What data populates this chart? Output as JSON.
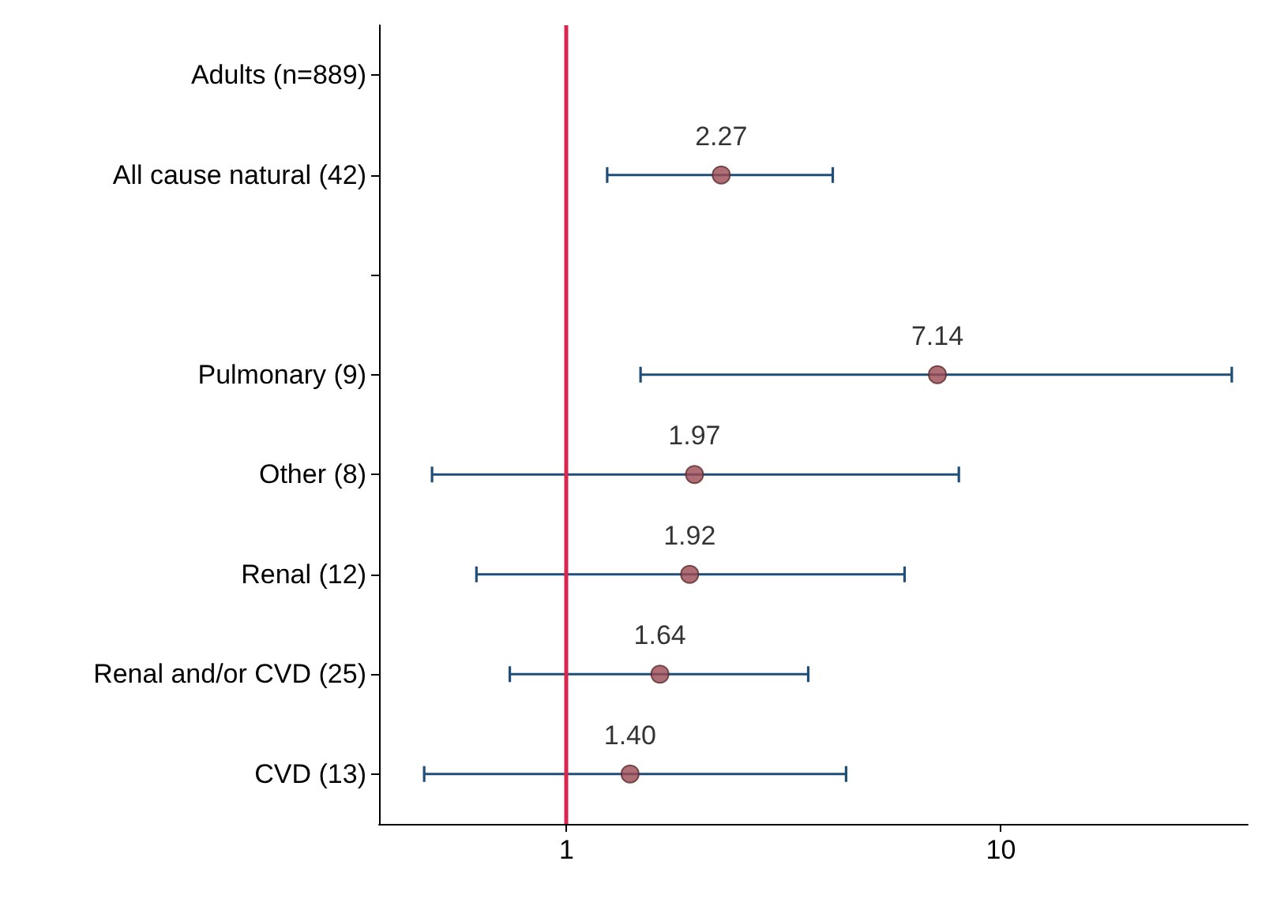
{
  "chart_data": {
    "type": "scatter",
    "orientation": "horizontal",
    "categories": [
      "Adults (n=889)",
      "All cause natural (42)",
      null,
      "Pulmonary (9)",
      "Other (8)",
      "Renal (12)",
      "Renal and/or CVD (25)",
      "CVD (13)"
    ],
    "values": [
      null,
      2.27,
      null,
      7.14,
      1.97,
      1.92,
      1.64,
      1.4
    ],
    "errors": [
      null,
      [
        1.24,
        4.1
      ],
      null,
      [
        1.48,
        34
      ],
      [
        0.49,
        8.0
      ],
      [
        0.62,
        6.0
      ],
      [
        0.74,
        3.6
      ],
      [
        0.47,
        4.4
      ]
    ],
    "value_labels": [
      null,
      "2.27",
      null,
      "7.14",
      "1.97",
      "1.92",
      "1.64",
      "1.40"
    ],
    "color": "#9b4a52",
    "log": "x",
    "xlim": [
      0.37,
      37
    ],
    "xticks": [
      1,
      10
    ],
    "marker": "circle",
    "ref_lines": [
      {
        "axis": "x",
        "value": 1,
        "color": "#d9264f"
      }
    ]
  }
}
